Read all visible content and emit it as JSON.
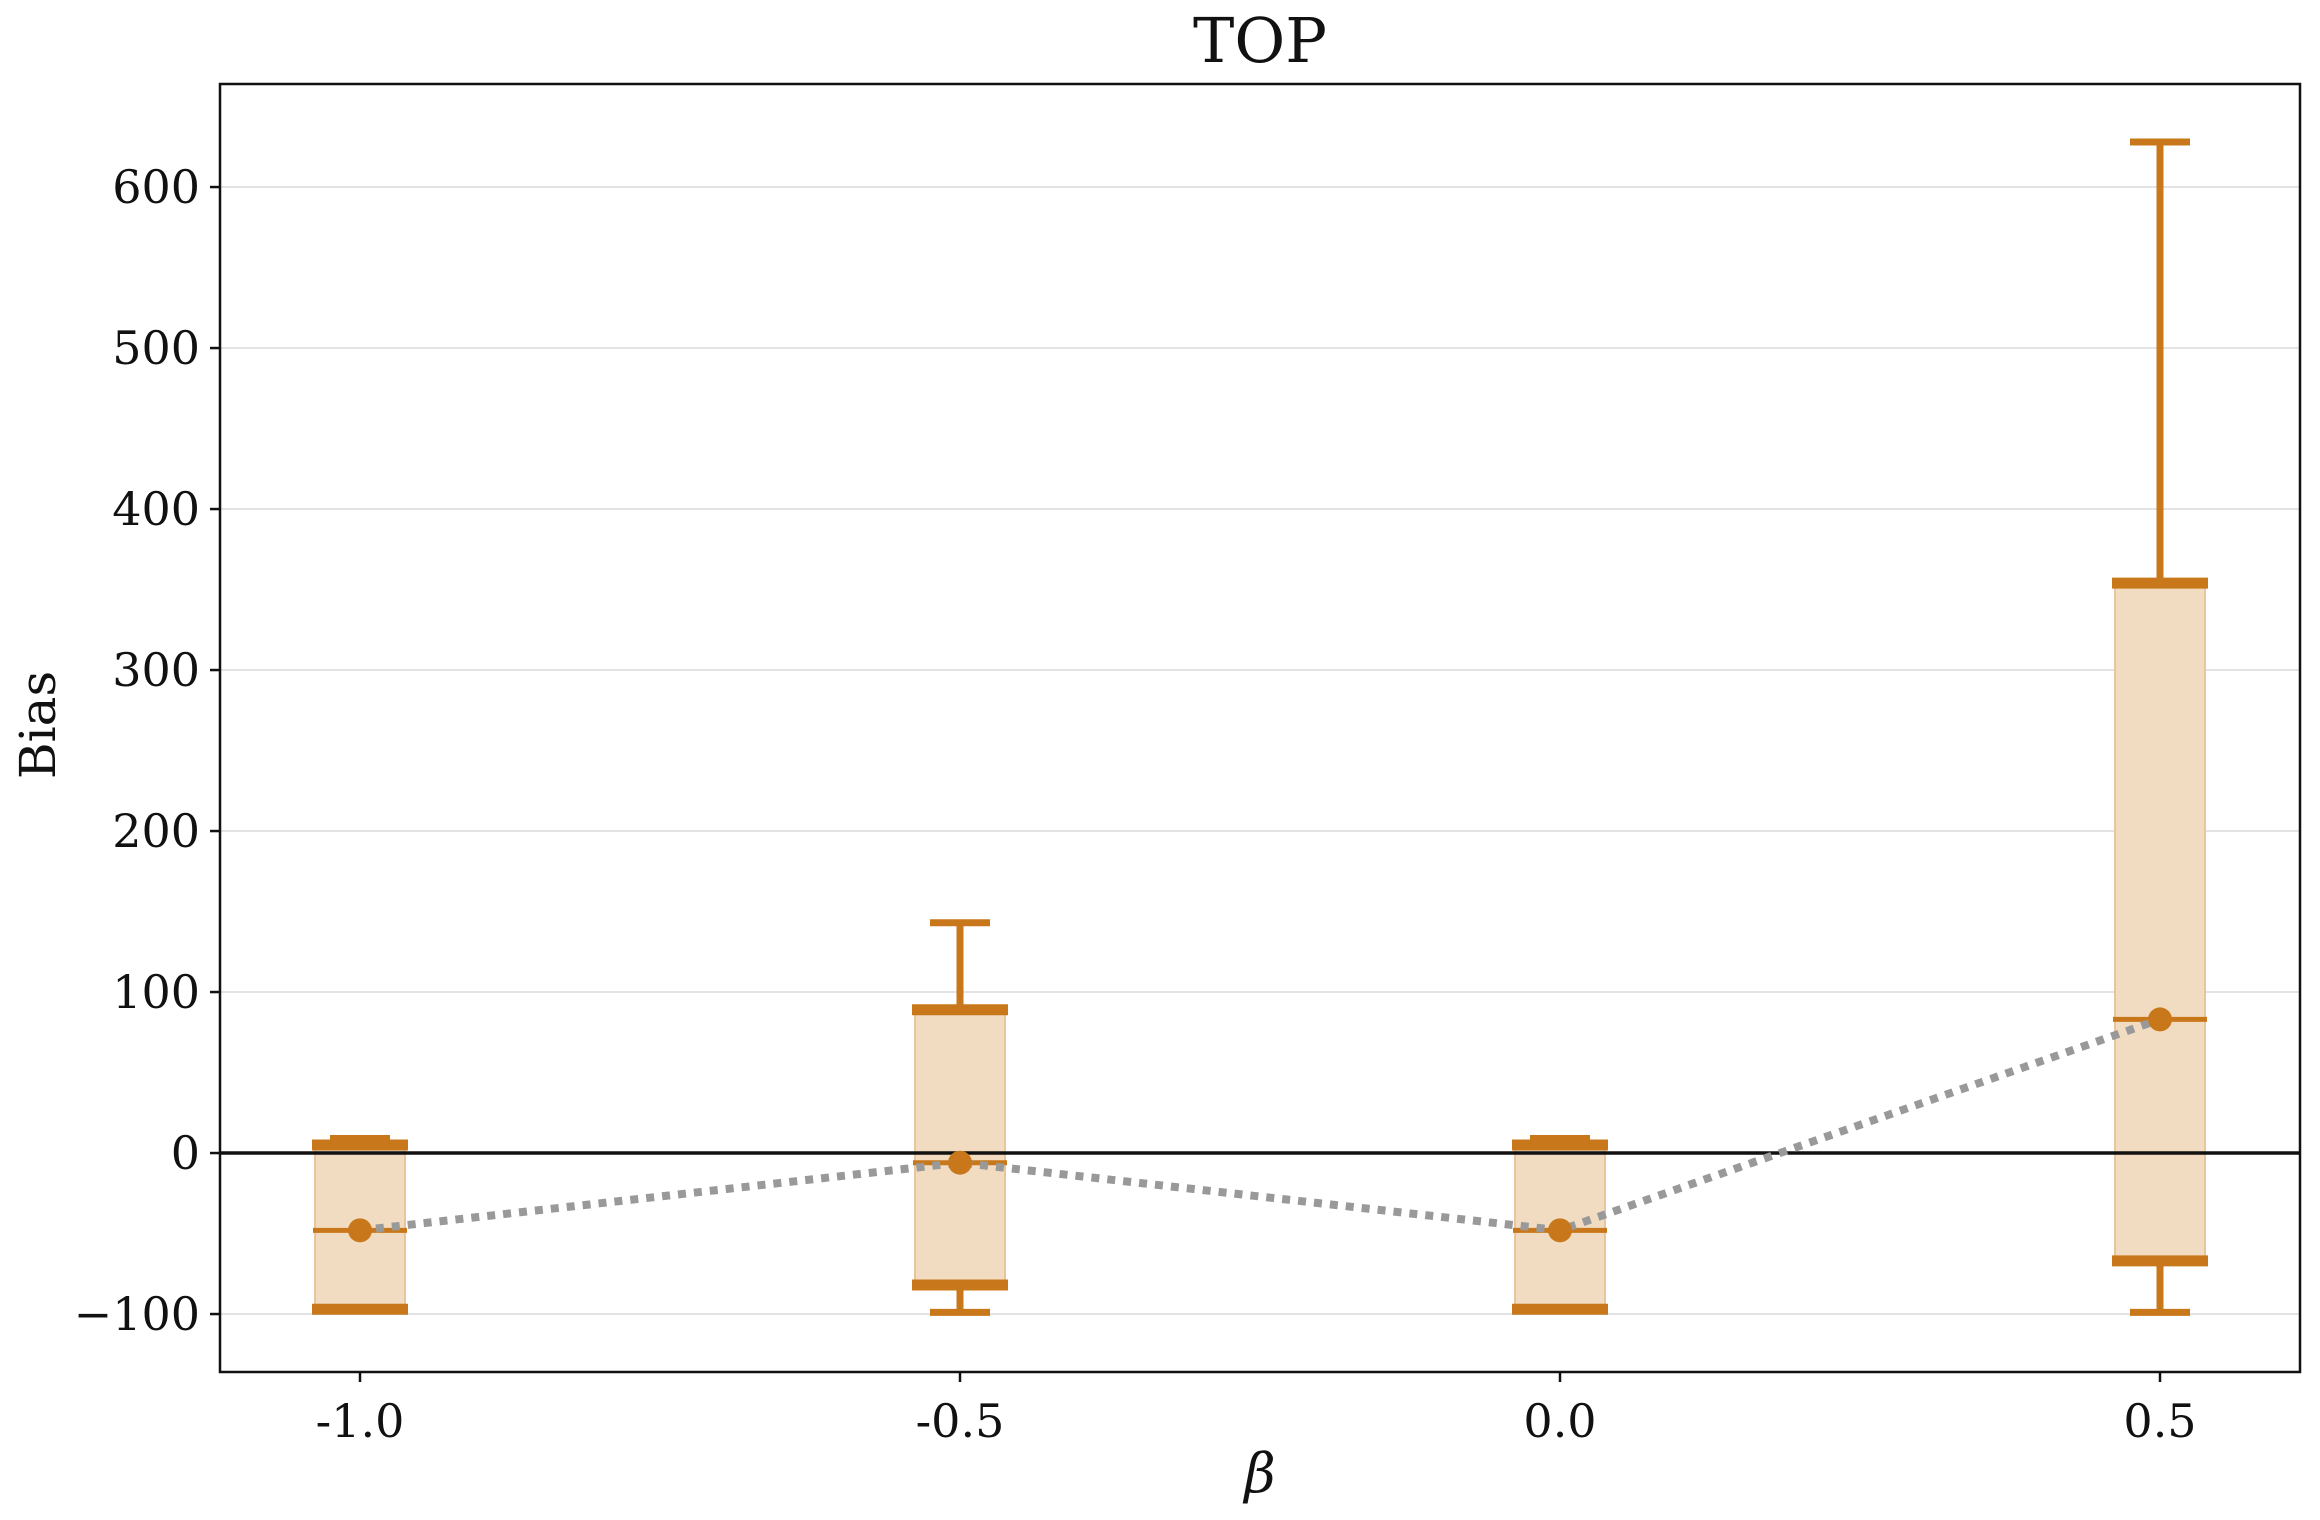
{
  "chart_data": {
    "type": "box",
    "title": "TOP",
    "xlabel": "β",
    "ylabel": "Bias",
    "categories": [
      "-1.0",
      "-0.5",
      "0.0",
      "0.5"
    ],
    "yticks": [
      "−100",
      "0",
      "100",
      "200",
      "300",
      "400",
      "500",
      "600"
    ],
    "ytick_values": [
      -100,
      0,
      100,
      200,
      300,
      400,
      500,
      600
    ],
    "ylim": [
      -136,
      664
    ],
    "grid": "horizontal",
    "reference_line": 0,
    "series": [
      {
        "boxes": [
          {
            "category": "-1.0",
            "whisker_low": -98,
            "q1": -97,
            "median": -48,
            "q3": 5,
            "whisker_high": 9,
            "mean": -48
          },
          {
            "category": "-0.5",
            "whisker_low": -99,
            "q1": -82,
            "median": -6,
            "q3": 89,
            "whisker_high": 143,
            "mean": -6
          },
          {
            "category": "0.0",
            "whisker_low": -98,
            "q1": -97,
            "median": -48,
            "q3": 5,
            "whisker_high": 9,
            "mean": -48
          },
          {
            "category": "0.5",
            "whisker_low": -99,
            "q1": -67,
            "median": 83,
            "q3": 354,
            "whisker_high": 628,
            "mean": 83
          }
        ]
      }
    ],
    "colors": {
      "box_fill": "#f1dcc1",
      "box_edge": "#e8c59a",
      "whisker": "#c8781a",
      "mean_line": "#999999",
      "zero_line": "#111111",
      "grid": "#e3e3e3"
    }
  }
}
